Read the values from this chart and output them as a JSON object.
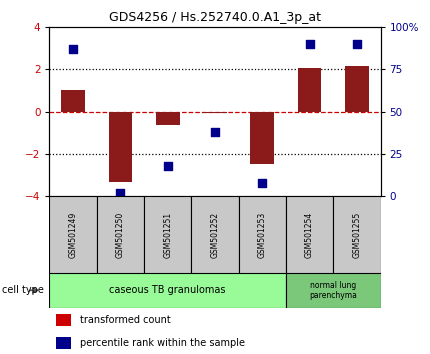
{
  "title": "GDS4256 / Hs.252740.0.A1_3p_at",
  "samples": [
    "GSM501249",
    "GSM501250",
    "GSM501251",
    "GSM501252",
    "GSM501253",
    "GSM501254",
    "GSM501255"
  ],
  "transformed_count": [
    1.0,
    -3.3,
    -0.65,
    -0.05,
    -2.45,
    2.05,
    2.15
  ],
  "percentile_rank": [
    87,
    2,
    18,
    38,
    8,
    90,
    90
  ],
  "ylim_left": [
    -4,
    4
  ],
  "ylim_right": [
    0,
    100
  ],
  "yticks_left": [
    -4,
    -2,
    0,
    2,
    4
  ],
  "yticks_right": [
    0,
    25,
    50,
    75,
    100
  ],
  "ytick_labels_right": [
    "0",
    "25",
    "50",
    "75",
    "100%"
  ],
  "bar_color": "#8B1A1A",
  "dot_color": "#00008B",
  "zero_line_color": "#CC0000",
  "dotted_line_color": "#000000",
  "cell_type_1_label": "caseous TB granulomas",
  "cell_type_1_count": 5,
  "cell_type_1_color": "#98FB98",
  "cell_type_2_label": "normal lung\nparenchyma",
  "cell_type_2_count": 2,
  "cell_type_2_color": "#7BC87B",
  "legend_red_label": "transformed count",
  "legend_blue_label": "percentile rank within the sample",
  "cell_type_label": "cell type",
  "bar_width": 0.5,
  "dot_size": 40
}
